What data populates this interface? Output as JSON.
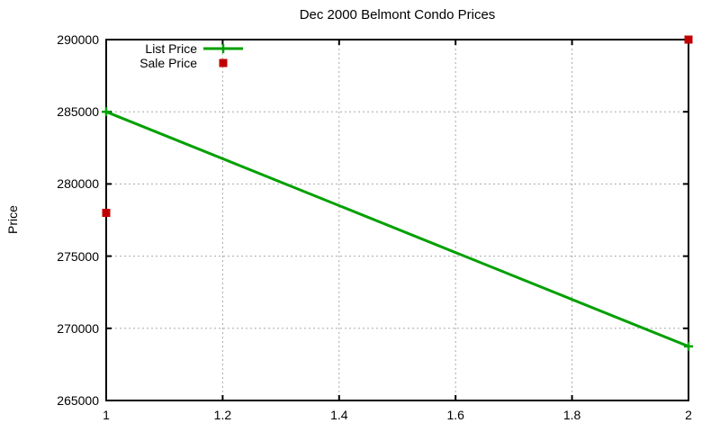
{
  "page": {
    "background": "#ffffff",
    "text_color": "#000000",
    "border_color": "#000000",
    "grid_color": "#a8a8a8"
  },
  "chart_data": {
    "type": "line",
    "title": "Dec 2000 Belmont Condo Prices",
    "xlabel": "",
    "ylabel": "Price",
    "xlim": [
      1,
      2
    ],
    "ylim": [
      265000,
      290000
    ],
    "x_ticks": [
      1,
      1.2,
      1.4,
      1.6,
      1.8,
      2
    ],
    "x_tick_labels": [
      "1",
      "1.2",
      "1.4",
      "1.6",
      "1.8",
      "2"
    ],
    "y_ticks": [
      265000,
      270000,
      275000,
      280000,
      285000,
      290000
    ],
    "y_tick_labels": [
      "265000",
      "270000",
      "275000",
      "280000",
      "285000",
      "290000"
    ],
    "grid": true,
    "legend_position": "top-left-inside",
    "series": [
      {
        "name": "List Price",
        "type": "line",
        "marker": "plus",
        "color": "#00a000",
        "x": [
          1,
          2
        ],
        "y": [
          285000,
          268750
        ]
      },
      {
        "name": "Sale Price",
        "type": "scatter",
        "marker": "square",
        "color": "#c00000",
        "x": [
          1,
          2
        ],
        "y": [
          278000,
          290000
        ]
      }
    ]
  }
}
